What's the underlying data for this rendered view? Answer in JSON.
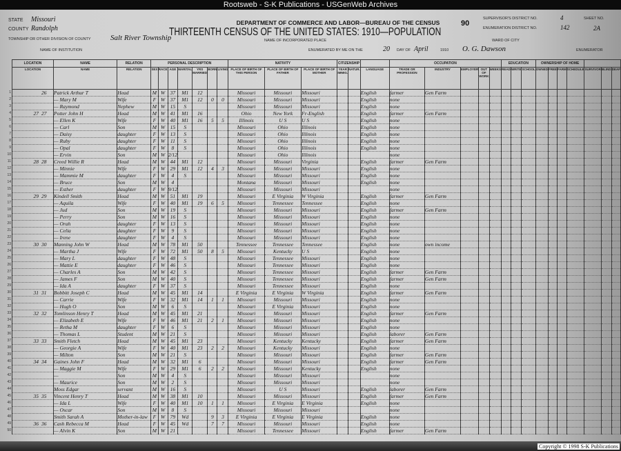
{
  "banner": "Rootsweb - S-K Publications - USGenWeb Archives",
  "header": {
    "department": "DEPARTMENT OF COMMERCE AND LABOR—BUREAU OF THE CENSUS",
    "title": "THIRTEENTH CENSUS OF THE UNITED STATES: 1910—POPULATION",
    "page_number": "90",
    "state_label": "State",
    "state": "Missouri",
    "county_label": "County",
    "county": "Randolph",
    "township_label": "Township or other division of county",
    "township": "Salt River Township",
    "incorporated_label": "Name of incorporated place",
    "ward_label": "Ward of city",
    "institution_label": "Name of institution",
    "supervisor_label": "Supervisor's District No.",
    "supervisor": "4",
    "enumeration_label": "Enumeration District No.",
    "enumeration": "142",
    "sheet_label": "Sheet No.",
    "sheet": "2A",
    "enumerated_label": "Enumerated by me on the",
    "day": "20",
    "day_of_label": "day of",
    "month": "April",
    "year": "1910",
    "enumerator": "O. G. Dawson",
    "enumerator_label": "Enumerator"
  },
  "columns": [
    "Location",
    "Name",
    "Relation",
    "Sex",
    "Race",
    "Age",
    "Marital",
    "Yrs married",
    "Born",
    "Living",
    "Place of birth of this person",
    "Place of birth of father",
    "Place of birth of mother",
    "Year immig.",
    "Natur.",
    "Language",
    "Trade or profession",
    "Industry",
    "Employer",
    "Out of work",
    "Weeks",
    "Read",
    "Write",
    "School",
    "Owned",
    "Free",
    "Farm",
    "Schedule",
    "Survivor",
    "Blind",
    "Deaf"
  ],
  "column_groups": [
    "Location",
    "Name",
    "Relation",
    "Personal Description",
    "Nativity",
    "Citizenship",
    "Occupation",
    "Education",
    "Ownership of Home"
  ],
  "rows": [
    [
      "",
      "26",
      "Patrick Arthur T",
      "Head",
      "M",
      "W",
      "37",
      "M1",
      "12",
      "",
      "",
      "Missouri",
      "Missouri",
      "Missouri",
      "English",
      "farmer",
      "Gen Farm"
    ],
    [
      "",
      "",
      "— Mary M",
      "Wife",
      "F",
      "W",
      "37",
      "M1",
      "12",
      "0",
      "0",
      "Missouri",
      "Missouri",
      "Missouri",
      "English",
      "none",
      ""
    ],
    [
      "",
      "",
      "— Raymond",
      "Nephew",
      "M",
      "W",
      "15",
      "S",
      "",
      "",
      "",
      "Missouri",
      "Missouri",
      "Missouri",
      "English",
      "none",
      ""
    ],
    [
      "27",
      "27",
      "Potter John H",
      "Head",
      "M",
      "W",
      "41",
      "M1",
      "16",
      "",
      "",
      "Ohio",
      "New York",
      "Fr-English",
      "English",
      "farmer",
      "Gen Farm"
    ],
    [
      "",
      "",
      "— Ellen K",
      "Wife",
      "F",
      "W",
      "40",
      "M1",
      "16",
      "5",
      "5",
      "Illinois",
      "U S",
      "U S",
      "English",
      "none",
      ""
    ],
    [
      "",
      "",
      "— Carl",
      "Son",
      "M",
      "W",
      "15",
      "S",
      "",
      "",
      "",
      "Missouri",
      "Ohio",
      "Illinois",
      "English",
      "none",
      ""
    ],
    [
      "",
      "",
      "— Daisy",
      "daughter",
      "F",
      "W",
      "13",
      "S",
      "",
      "",
      "",
      "Missouri",
      "Ohio",
      "Illinois",
      "English",
      "none",
      ""
    ],
    [
      "",
      "",
      "— Ruby",
      "daughter",
      "F",
      "W",
      "11",
      "S",
      "",
      "",
      "",
      "Missouri",
      "Ohio",
      "Illinois",
      "English",
      "none",
      ""
    ],
    [
      "",
      "",
      "— Opal",
      "daughter",
      "F",
      "W",
      "8",
      "S",
      "",
      "",
      "",
      "Missouri",
      "Ohio",
      "Illinois",
      "English",
      "none",
      ""
    ],
    [
      "",
      "",
      "— Ervin",
      "Son",
      "M",
      "W",
      "2/12",
      "",
      "",
      "",
      "",
      "Missouri",
      "Ohio",
      "Illinois",
      "",
      "none",
      ""
    ],
    [
      "28",
      "28",
      "Creed Willie R",
      "Head",
      "M",
      "W",
      "44",
      "M1",
      "12",
      "",
      "",
      "Missouri",
      "Missouri",
      "Virginia",
      "English",
      "farmer",
      "Gen Farm"
    ],
    [
      "",
      "",
      "— Minnie",
      "Wife",
      "F",
      "W",
      "29",
      "M1",
      "12",
      "4",
      "3",
      "Missouri",
      "Missouri",
      "Missouri",
      "English",
      "none",
      ""
    ],
    [
      "",
      "",
      "— Mammie M",
      "daughter",
      "F",
      "W",
      "4",
      "S",
      "",
      "",
      "",
      "Missouri",
      "Missouri",
      "Missouri",
      "English",
      "none",
      ""
    ],
    [
      "",
      "",
      "— Bruce",
      "Son",
      "M",
      "W",
      "4",
      "",
      "",
      "",
      "",
      "Montana",
      "Missouri",
      "Missouri",
      "English",
      "none",
      ""
    ],
    [
      "",
      "",
      "— Esther",
      "daughter",
      "F",
      "W",
      "9/12",
      "",
      "",
      "",
      "",
      "Missouri",
      "Missouri",
      "Missouri",
      "",
      "none",
      ""
    ],
    [
      "29",
      "29",
      "Kindell Smith",
      "Head",
      "M",
      "W",
      "51",
      "M1",
      "19",
      "",
      "",
      "Missouri",
      "E Virginia",
      "W Virginia",
      "English",
      "farmer",
      "Gen Farm"
    ],
    [
      "",
      "",
      "— Aquila",
      "Wife",
      "F",
      "W",
      "40",
      "M1",
      "19",
      "6",
      "5",
      "Missouri",
      "Tennessee",
      "Tennessee",
      "English",
      "none",
      ""
    ],
    [
      "",
      "",
      "— Jud",
      "Son",
      "M",
      "W",
      "19",
      "S",
      "",
      "",
      "",
      "Missouri",
      "Missouri",
      "Missouri",
      "English",
      "farmer",
      "Gen Farm"
    ],
    [
      "",
      "",
      "— Perry",
      "Son",
      "M",
      "W",
      "16",
      "S",
      "",
      "",
      "",
      "Missouri",
      "Missouri",
      "Missouri",
      "English",
      "none",
      ""
    ],
    [
      "",
      "",
      "— Orah",
      "daughter",
      "F",
      "W",
      "13",
      "S",
      "",
      "",
      "",
      "Missouri",
      "Missouri",
      "Missouri",
      "English",
      "none",
      ""
    ],
    [
      "",
      "",
      "— Celia",
      "daughter",
      "F",
      "W",
      "9",
      "S",
      "",
      "",
      "",
      "Missouri",
      "Missouri",
      "Missouri",
      "English",
      "none",
      ""
    ],
    [
      "",
      "",
      "— Irene",
      "daughter",
      "F",
      "W",
      "4",
      "S",
      "",
      "",
      "",
      "Missouri",
      "Missouri",
      "Missouri",
      "English",
      "none",
      ""
    ],
    [
      "30",
      "30",
      "Manning John W",
      "Head",
      "M",
      "W",
      "78",
      "M1",
      "50",
      "",
      "",
      "Tennessee",
      "Tennessee",
      "Tennessee",
      "English",
      "none",
      "own income"
    ],
    [
      "",
      "",
      "— Martha J",
      "Wife",
      "F",
      "W",
      "72",
      "M1",
      "50",
      "8",
      "5",
      "Missouri",
      "Kentucky",
      "U S",
      "English",
      "none",
      ""
    ],
    [
      "",
      "",
      "— Mary L",
      "daughter",
      "F",
      "W",
      "48",
      "S",
      "",
      "",
      "",
      "Missouri",
      "Tennessee",
      "Missouri",
      "English",
      "none",
      ""
    ],
    [
      "",
      "",
      "— Mattie E",
      "daughter",
      "F",
      "W",
      "46",
      "S",
      "",
      "",
      "",
      "Missouri",
      "Tennessee",
      "Missouri",
      "English",
      "none",
      ""
    ],
    [
      "",
      "",
      "— Charles A",
      "Son",
      "M",
      "W",
      "42",
      "S",
      "",
      "",
      "",
      "Missouri",
      "Tennessee",
      "Missouri",
      "English",
      "farmer",
      "Gen Farm"
    ],
    [
      "",
      "",
      "— James F",
      "Son",
      "M",
      "W",
      "40",
      "S",
      "",
      "",
      "",
      "Missouri",
      "Tennessee",
      "Missouri",
      "English",
      "farmer",
      "Gen Farm"
    ],
    [
      "",
      "",
      "— Ida A",
      "daughter",
      "F",
      "W",
      "37",
      "S",
      "",
      "",
      "",
      "Missouri",
      "Tennessee",
      "Missouri",
      "English",
      "none",
      ""
    ],
    [
      "31",
      "31",
      "Bobbitt Joseph C",
      "Head",
      "M",
      "W",
      "45",
      "M1",
      "14",
      "",
      "",
      "E Virginia",
      "E Virginia",
      "W Virginia",
      "English",
      "farmer",
      "Gen Farm"
    ],
    [
      "",
      "",
      "— Carrie",
      "Wife",
      "F",
      "W",
      "32",
      "M1",
      "14",
      "1",
      "1",
      "Missouri",
      "Missouri",
      "Missouri",
      "English",
      "none",
      ""
    ],
    [
      "",
      "",
      "— Hugh O",
      "Son",
      "M",
      "W",
      "6",
      "S",
      "",
      "",
      "",
      "Missouri",
      "E Virginia",
      "Missouri",
      "English",
      "none",
      ""
    ],
    [
      "32",
      "32",
      "Tomlinson Henry T",
      "Head",
      "M",
      "W",
      "45",
      "M1",
      "21",
      "",
      "",
      "Missouri",
      "Missouri",
      "Missouri",
      "English",
      "farmer",
      "Gen Farm"
    ],
    [
      "",
      "",
      "— Elizabeth E",
      "Wife",
      "F",
      "W",
      "46",
      "M1",
      "21",
      "2",
      "1",
      "Missouri",
      "Missouri",
      "Missouri",
      "English",
      "none",
      ""
    ],
    [
      "",
      "",
      "— Retha M",
      "daughter",
      "F",
      "W",
      "6",
      "S",
      "",
      "",
      "",
      "Missouri",
      "Missouri",
      "Missouri",
      "English",
      "none",
      ""
    ],
    [
      "",
      "",
      "— Thomas L",
      "Student",
      "M",
      "W",
      "21",
      "S",
      "",
      "",
      "",
      "Missouri",
      "Missouri",
      "Missouri",
      "English",
      "laborer",
      "Gen Farm"
    ],
    [
      "33",
      "33",
      "Smith Fletch",
      "Head",
      "M",
      "W",
      "45",
      "M1",
      "23",
      "",
      "",
      "Missouri",
      "Kentucky",
      "Kentucky",
      "English",
      "farmer",
      "Gen Farm"
    ],
    [
      "",
      "",
      "— Georgie A",
      "Wife",
      "F",
      "W",
      "40",
      "M1",
      "23",
      "2",
      "2",
      "Missouri",
      "Kentucky",
      "Missouri",
      "English",
      "none",
      ""
    ],
    [
      "",
      "",
      "— Milton",
      "Son",
      "M",
      "W",
      "21",
      "S",
      "",
      "",
      "",
      "Missouri",
      "Missouri",
      "Missouri",
      "English",
      "farmer",
      "Gen Farm"
    ],
    [
      "34",
      "34",
      "Gaines John F",
      "Head",
      "M",
      "W",
      "32",
      "M1",
      "6",
      "",
      "",
      "Missouri",
      "Missouri",
      "Missouri",
      "English",
      "farmer",
      "Gen Farm"
    ],
    [
      "",
      "",
      "— Maggie M",
      "Wife",
      "F",
      "W",
      "29",
      "M1",
      "6",
      "2",
      "2",
      "Missouri",
      "Missouri",
      "Kentucky",
      "English",
      "none",
      ""
    ],
    [
      "",
      "",
      "—",
      "Son",
      "M",
      "W",
      "4",
      "S",
      "",
      "",
      "",
      "Missouri",
      "Missouri",
      "Missouri",
      "",
      "none",
      ""
    ],
    [
      "",
      "",
      "— Maurice",
      "Son",
      "M",
      "W",
      "2",
      "S",
      "",
      "",
      "",
      "Missouri",
      "Missouri",
      "Missouri",
      "",
      "none",
      ""
    ],
    [
      "",
      "",
      "Moss Edgar",
      "servant",
      "M",
      "W",
      "16",
      "S",
      "",
      "",
      "",
      "Missouri",
      "U S",
      "Missouri",
      "English",
      "laborer",
      "Gen Farm"
    ],
    [
      "35",
      "35",
      "Vincent Henry T",
      "Head",
      "M",
      "W",
      "38",
      "M1",
      "10",
      "",
      "",
      "Missouri",
      "Missouri",
      "Missouri",
      "English",
      "farmer",
      "Gen Farm"
    ],
    [
      "",
      "",
      "— Ida L",
      "Wife",
      "F",
      "W",
      "40",
      "M1",
      "10",
      "1",
      "1",
      "Missouri",
      "E Virginia",
      "E Virginia",
      "English",
      "none",
      ""
    ],
    [
      "",
      "",
      "— Oscar",
      "Son",
      "M",
      "W",
      "8",
      "S",
      "",
      "",
      "",
      "Missouri",
      "Missouri",
      "Missouri",
      "",
      "none",
      ""
    ],
    [
      "",
      "",
      "Smith Sarah A",
      "Mother-in-law",
      "F",
      "W",
      "79",
      "Wd",
      "",
      "9",
      "3",
      "E Virginia",
      "E Virginia",
      "E Virginia",
      "English",
      "none",
      ""
    ],
    [
      "36",
      "36",
      "Cash Rebecca M",
      "Head",
      "F",
      "W",
      "45",
      "Wd",
      "",
      "7",
      "7",
      "Missouri",
      "Missouri",
      "Missouri",
      "English",
      "none",
      ""
    ],
    [
      "",
      "",
      "— Alvin K",
      "Son",
      "M",
      "W",
      "21",
      "",
      "",
      "",
      "",
      "Missouri",
      "Tennessee",
      "Missouri",
      "English",
      "farmer",
      "Gen Farm"
    ]
  ],
  "copyright": "Copyright © 1998 S-K Publications"
}
